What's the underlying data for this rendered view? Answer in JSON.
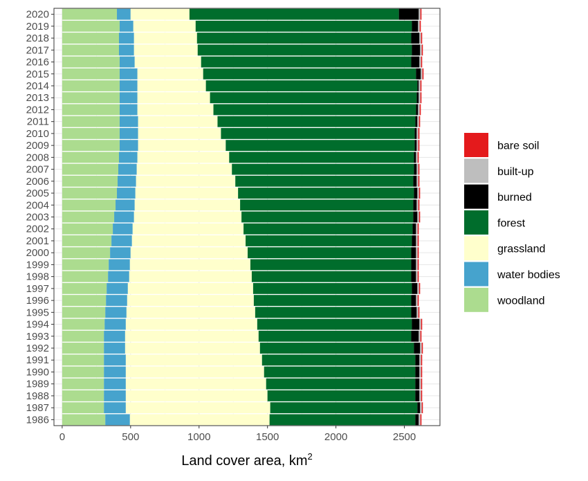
{
  "chart_data": {
    "type": "bar",
    "orientation": "horizontal",
    "stacked": true,
    "title": "",
    "xlabel": "Land cover area, km",
    "xlabel_superscript": "2",
    "ylabel": "",
    "xlim": [
      -60,
      2760
    ],
    "x_ticks": [
      0,
      500,
      1000,
      1500,
      2000,
      2500
    ],
    "grid": true,
    "legend_position": "right",
    "categories": [
      "1986",
      "1987",
      "1988",
      "1989",
      "1990",
      "1991",
      "1992",
      "1993",
      "1994",
      "1995",
      "1996",
      "1997",
      "1998",
      "1999",
      "2000",
      "2001",
      "2002",
      "2003",
      "2004",
      "2005",
      "2006",
      "2007",
      "2008",
      "2009",
      "2010",
      "2011",
      "2012",
      "2013",
      "2014",
      "2015",
      "2016",
      "2017",
      "2018",
      "2019",
      "2020"
    ],
    "series": [
      {
        "name": "woodland",
        "color": "#acdc8f",
        "values": [
          315,
          305,
          305,
          305,
          305,
          305,
          305,
          305,
          310,
          315,
          320,
          325,
          335,
          340,
          350,
          360,
          370,
          380,
          390,
          400,
          405,
          410,
          415,
          420,
          420,
          420,
          420,
          420,
          420,
          420,
          420,
          415,
          415,
          420,
          400
        ]
      },
      {
        "name": "water bodies",
        "color": "#46a3cd",
        "values": [
          180,
          160,
          160,
          160,
          160,
          160,
          155,
          155,
          155,
          155,
          155,
          155,
          155,
          155,
          150,
          150,
          145,
          145,
          140,
          135,
          135,
          135,
          135,
          135,
          135,
          135,
          130,
          130,
          130,
          130,
          110,
          110,
          110,
          100,
          100
        ]
      },
      {
        "name": "grassland",
        "color": "#ffffcc",
        "values": [
          1020,
          1055,
          1035,
          1025,
          1010,
          995,
          985,
          975,
          960,
          940,
          925,
          915,
          895,
          880,
          855,
          830,
          810,
          785,
          770,
          750,
          725,
          695,
          670,
          640,
          605,
          580,
          555,
          530,
          500,
          480,
          485,
          465,
          460,
          455,
          430
        ]
      },
      {
        "name": "forest",
        "color": "#006d2c",
        "values": [
          1065,
          1075,
          1080,
          1090,
          1105,
          1120,
          1125,
          1115,
          1130,
          1140,
          1150,
          1160,
          1165,
          1175,
          1195,
          1215,
          1235,
          1255,
          1265,
          1285,
          1300,
          1330,
          1350,
          1380,
          1415,
          1445,
          1480,
          1510,
          1545,
          1555,
          1535,
          1565,
          1565,
          1580,
          1530
        ]
      },
      {
        "name": "burned",
        "color": "#000000",
        "values": [
          25,
          20,
          30,
          30,
          30,
          30,
          45,
          55,
          55,
          40,
          35,
          40,
          35,
          35,
          35,
          30,
          25,
          30,
          25,
          25,
          25,
          20,
          15,
          15,
          15,
          15,
          15,
          15,
          10,
          35,
          60,
          60,
          60,
          45,
          145
        ]
      },
      {
        "name": "built-up",
        "color": "#bebebe",
        "values": [
          12,
          12,
          12,
          12,
          12,
          12,
          12,
          12,
          12,
          12,
          12,
          12,
          12,
          12,
          12,
          12,
          12,
          12,
          12,
          12,
          12,
          12,
          12,
          12,
          12,
          12,
          12,
          12,
          12,
          12,
          12,
          12,
          12,
          12,
          12
        ]
      },
      {
        "name": "bare soil",
        "color": "#e41a1c",
        "values": [
          8,
          8,
          8,
          8,
          8,
          8,
          8,
          8,
          8,
          8,
          8,
          8,
          8,
          8,
          8,
          8,
          8,
          8,
          8,
          8,
          8,
          8,
          8,
          8,
          8,
          8,
          8,
          8,
          8,
          8,
          8,
          8,
          8,
          8,
          8
        ]
      }
    ],
    "legend_order": [
      "bare soil",
      "built-up",
      "burned",
      "forest",
      "grassland",
      "water bodies",
      "woodland"
    ]
  }
}
